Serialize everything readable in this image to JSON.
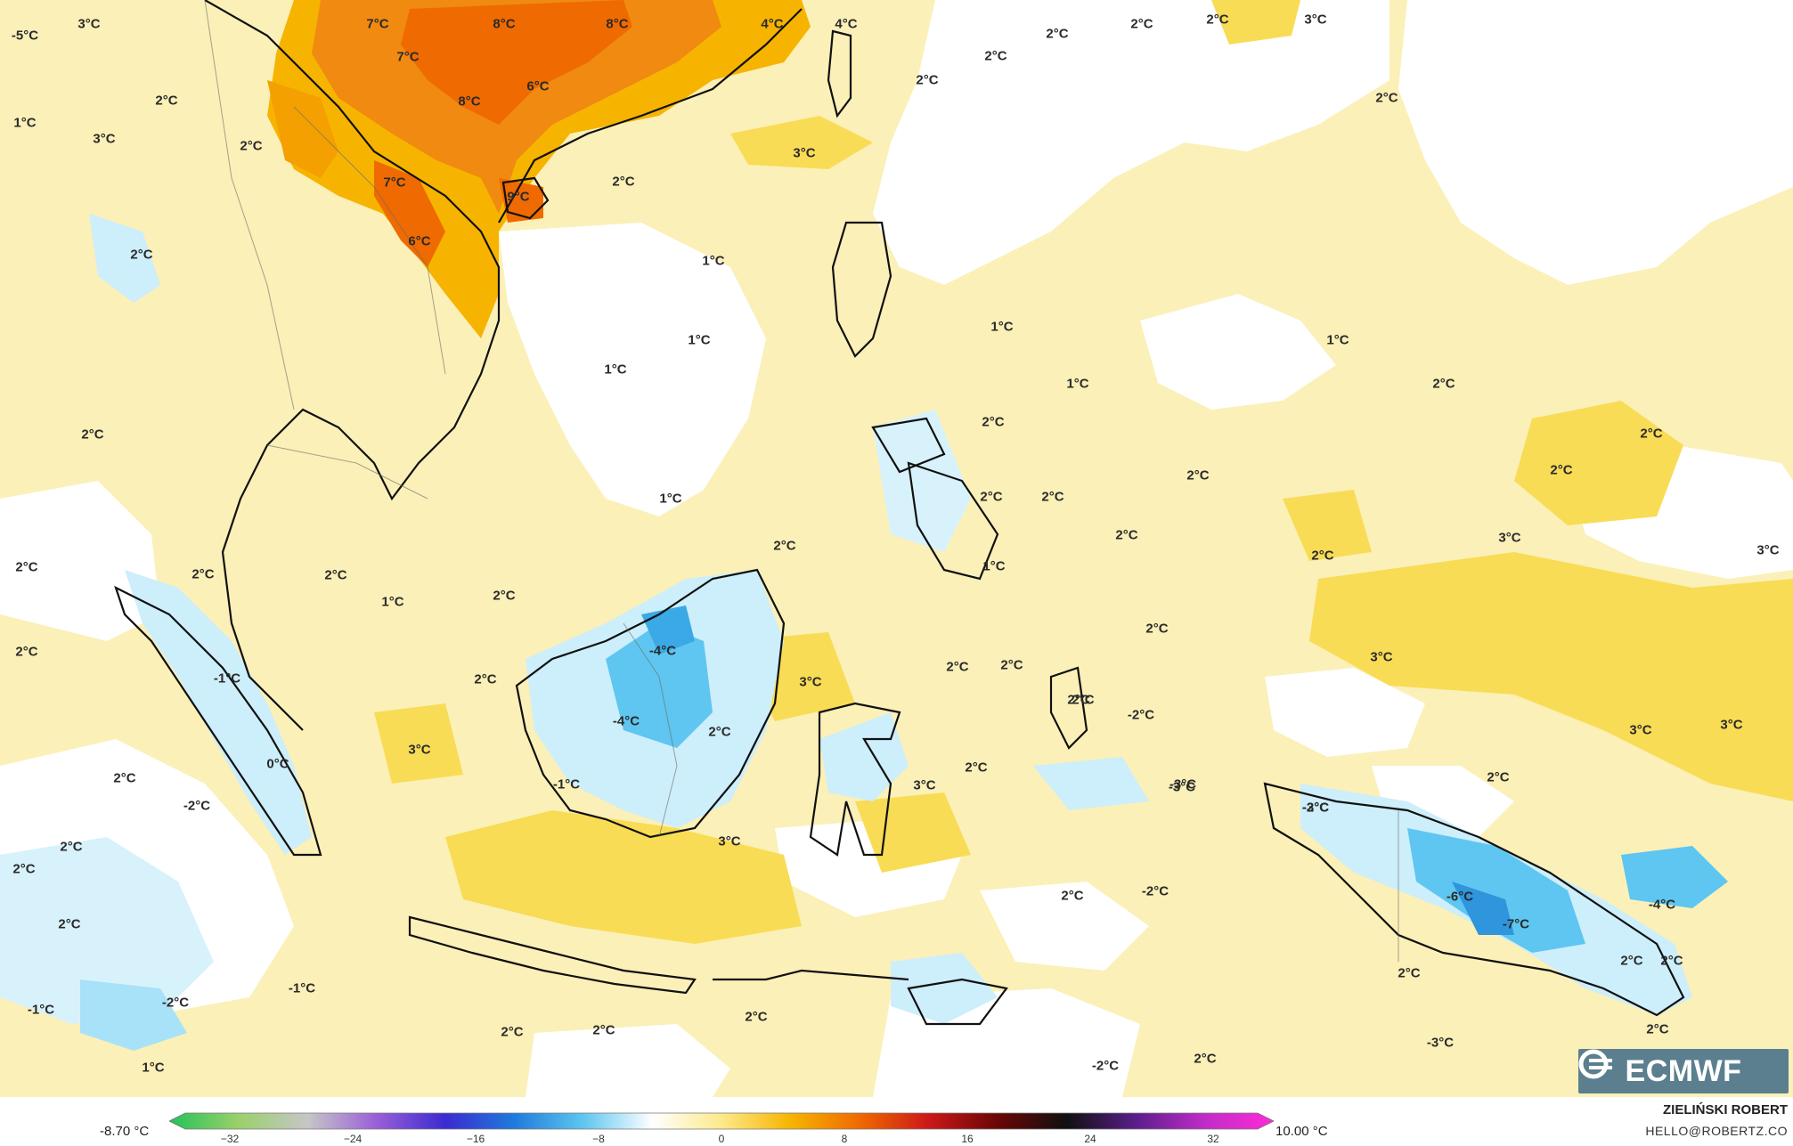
{
  "legend": {
    "min_label": "-8.70 °C",
    "max_label": "10.00 °C",
    "ticks": [
      "−32",
      "−24",
      "−16",
      "−8",
      "0",
      "8",
      "16",
      "24",
      "32"
    ],
    "colors": [
      "#22c25a",
      "#9ad06a",
      "#c6c6c6",
      "#9a5fd8",
      "#3b2bd0",
      "#1f7bdb",
      "#5ec6f0",
      "#ffffff",
      "#fde98a",
      "#f6b400",
      "#ef6a00",
      "#cc1818",
      "#6a0606",
      "#101010",
      "#5a1e8a",
      "#c02cc8",
      "#ff2ad8"
    ]
  },
  "credit": {
    "author": "ZIELIŃSKI ROBERT",
    "email": "HELLO@ROBERTZ.CO"
  },
  "logo": {
    "text": "ECMWF"
  },
  "map_labels": [
    {
      "text": "-5°C"
    },
    {
      "text": "3°C"
    },
    {
      "text": "7°C"
    },
    {
      "text": "8°C"
    },
    {
      "text": "8°C"
    },
    {
      "text": "4°C"
    },
    {
      "text": "4°C"
    },
    {
      "text": "2°C"
    },
    {
      "text": "3°C"
    },
    {
      "text": "2°C"
    },
    {
      "text": "2°C"
    },
    {
      "text": "7°C"
    },
    {
      "text": "6°C"
    },
    {
      "text": "8°C"
    },
    {
      "text": "2°C"
    },
    {
      "text": "2°C"
    },
    {
      "text": "3°C"
    },
    {
      "text": "2°C"
    },
    {
      "text": "1°C"
    },
    {
      "text": "2°C"
    },
    {
      "text": "2°C"
    },
    {
      "text": "7°C"
    },
    {
      "text": "9°C"
    },
    {
      "text": "2°C"
    },
    {
      "text": "3°C"
    },
    {
      "text": "6°C"
    },
    {
      "text": "2°C"
    },
    {
      "text": "1°C"
    },
    {
      "text": "1°C"
    },
    {
      "text": "1°C"
    },
    {
      "text": "1°C"
    },
    {
      "text": "1°C"
    },
    {
      "text": "1°C"
    },
    {
      "text": "2°C"
    },
    {
      "text": "2°C"
    },
    {
      "text": "2°C"
    },
    {
      "text": "2°C"
    },
    {
      "text": "2°C"
    },
    {
      "text": "2°C"
    },
    {
      "text": "2°C"
    },
    {
      "text": "2°C"
    },
    {
      "text": "3°C"
    },
    {
      "text": "1°C"
    },
    {
      "text": "2°C"
    },
    {
      "text": "2°C"
    },
    {
      "text": "2°C"
    },
    {
      "text": "1°C"
    },
    {
      "text": "2°C"
    },
    {
      "text": "2°C"
    },
    {
      "text": "2°C"
    },
    {
      "text": "1°C"
    },
    {
      "text": "2°C"
    },
    {
      "text": "2°C"
    },
    {
      "text": "3°C"
    },
    {
      "text": "2°C"
    },
    {
      "text": "-1°C"
    },
    {
      "text": "2°C"
    },
    {
      "text": "-4°C"
    },
    {
      "text": "2°C"
    },
    {
      "text": "3°C"
    },
    {
      "text": "3°C"
    },
    {
      "text": "2°C"
    },
    {
      "text": "2°C"
    },
    {
      "text": "2°C"
    },
    {
      "text": "3°C"
    },
    {
      "text": "-4°C"
    },
    {
      "text": "2°C"
    },
    {
      "text": "-2°C"
    },
    {
      "text": "3°C"
    },
    {
      "text": "3°C"
    },
    {
      "text": "0°C"
    },
    {
      "text": "2°C"
    },
    {
      "text": "-2°C"
    },
    {
      "text": "-1°C"
    },
    {
      "text": "2°C"
    },
    {
      "text": "-3°C"
    },
    {
      "text": "-2°C"
    },
    {
      "text": "2°C"
    },
    {
      "text": "2°C"
    },
    {
      "text": "2°C"
    },
    {
      "text": "3°C"
    },
    {
      "text": "3°C"
    },
    {
      "text": "-3°C"
    },
    {
      "text": "-3°C"
    },
    {
      "text": "2°C"
    },
    {
      "text": "2°C"
    },
    {
      "text": "-6°C"
    },
    {
      "text": "-7°C"
    },
    {
      "text": "-4°C"
    },
    {
      "text": "2°C"
    },
    {
      "text": "-1°C"
    },
    {
      "text": "-1°C"
    },
    {
      "text": "-2°C"
    },
    {
      "text": "2°C"
    },
    {
      "text": "2°C"
    },
    {
      "text": "2°C"
    },
    {
      "text": "2°C"
    },
    {
      "text": "1°C"
    },
    {
      "text": "-2°C"
    },
    {
      "text": "2°C"
    },
    {
      "text": "-3°C"
    },
    {
      "text": "2°C"
    },
    {
      "text": "2°C"
    },
    {
      "text": "-2°C"
    }
  ]
}
